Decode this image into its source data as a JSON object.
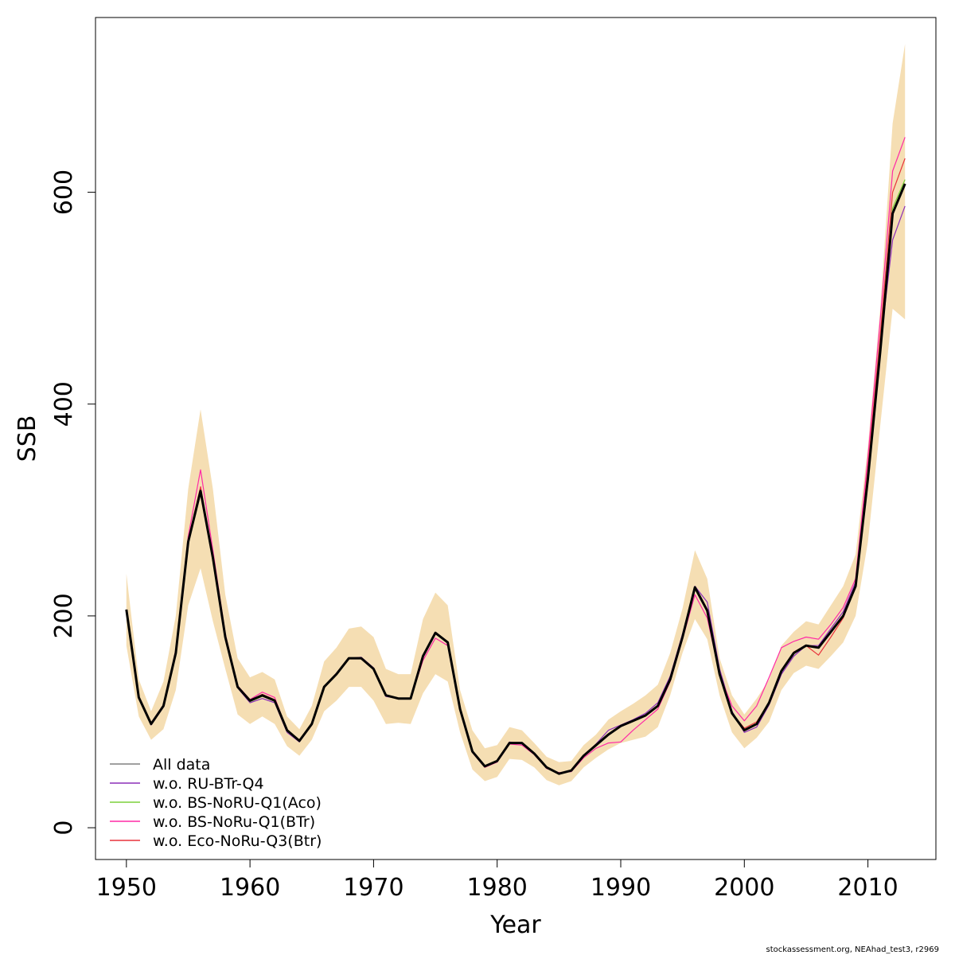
{
  "chart_data": {
    "type": "line",
    "xlabel": "Year",
    "ylabel": "SSB",
    "xlim": [
      1947.5,
      2015.5
    ],
    "ylim": [
      -30,
      765
    ],
    "x_ticks": [
      1950,
      1960,
      1970,
      1980,
      1990,
      2000,
      2010
    ],
    "y_ticks": [
      0,
      200,
      400,
      600
    ],
    "x_tick_labels": [
      "1950",
      "1960",
      "1970",
      "1980",
      "1990",
      "2000",
      "2010"
    ],
    "y_tick_labels": [
      "0",
      "200",
      "400",
      "600"
    ],
    "legend_position": "bottom-left",
    "footnote": "stockassessment.org, NEAhad_test3, r2969",
    "colors": {
      "band": "#f5deb3",
      "all_data": "#000000",
      "ru_btr_q4": "#8b2fb8",
      "bs_noru_q1_aco": "#7cd13a",
      "bs_noru_q1_btr": "#ff2aa6",
      "eco_noru_q3_btr": "#e8323c",
      "legend_all_data": "#808080"
    },
    "x": [
      1950,
      1951,
      1952,
      1953,
      1954,
      1955,
      1956,
      1957,
      1958,
      1959,
      1960,
      1961,
      1962,
      1963,
      1964,
      1965,
      1966,
      1967,
      1968,
      1969,
      1970,
      1971,
      1972,
      1973,
      1974,
      1975,
      1976,
      1977,
      1978,
      1979,
      1980,
      1981,
      1982,
      1983,
      1984,
      1985,
      1986,
      1987,
      1988,
      1989,
      1990,
      1991,
      1992,
      1993,
      1994,
      1995,
      1996,
      1997,
      1998,
      1999,
      2000,
      2001,
      2002,
      2003,
      2004,
      2005,
      2006,
      2007,
      2008,
      2009,
      2010,
      2011,
      2012,
      2013
    ],
    "band_upper": [
      240,
      140,
      110,
      138,
      200,
      320,
      395,
      320,
      220,
      160,
      142,
      147,
      140,
      105,
      93,
      115,
      157,
      170,
      188,
      190,
      180,
      150,
      145,
      145,
      197,
      222,
      210,
      130,
      92,
      75,
      78,
      95,
      92,
      80,
      67,
      62,
      63,
      78,
      88,
      102,
      110,
      117,
      125,
      135,
      165,
      207,
      262,
      235,
      160,
      125,
      107,
      122,
      140,
      172,
      185,
      195,
      192,
      210,
      228,
      258,
      360,
      490,
      665,
      740
    ],
    "band_lower": [
      172,
      105,
      83,
      93,
      130,
      210,
      245,
      195,
      150,
      107,
      98,
      105,
      98,
      77,
      68,
      83,
      110,
      120,
      133,
      133,
      120,
      98,
      99,
      98,
      127,
      145,
      138,
      90,
      55,
      44,
      48,
      65,
      64,
      57,
      45,
      40,
      44,
      57,
      66,
      74,
      80,
      83,
      86,
      95,
      125,
      165,
      197,
      178,
      125,
      90,
      75,
      85,
      100,
      130,
      146,
      153,
      150,
      162,
      175,
      200,
      270,
      380,
      490,
      480
    ],
    "series": [
      {
        "name": "All data",
        "color_key": "all_data",
        "values": [
          206,
          123,
          98,
          115,
          165,
          270,
          318,
          255,
          180,
          133,
          120,
          125,
          120,
          92,
          82,
          98,
          133,
          145,
          160,
          160,
          150,
          125,
          122,
          122,
          162,
          184,
          175,
          112,
          72,
          58,
          63,
          80,
          80,
          70,
          57,
          51,
          54,
          68,
          78,
          88,
          96,
          101,
          106,
          115,
          140,
          180,
          227,
          205,
          145,
          108,
          92,
          98,
          118,
          148,
          165,
          172,
          170,
          185,
          200,
          228,
          330,
          450,
          580,
          608
        ]
      },
      {
        "name": "w.o. RU-BTr-Q4",
        "color_key": "ru_btr_q4",
        "values": [
          205,
          122,
          97,
          114,
          164,
          268,
          316,
          252,
          178,
          132,
          118,
          122,
          118,
          90,
          81,
          97,
          132,
          145,
          160,
          161,
          151,
          124,
          122,
          122,
          162,
          183,
          175,
          112,
          72,
          58,
          62,
          81,
          79,
          70,
          56,
          52,
          53,
          68,
          79,
          92,
          97,
          102,
          108,
          118,
          143,
          183,
          228,
          213,
          150,
          110,
          90,
          95,
          116,
          145,
          162,
          172,
          172,
          188,
          204,
          232,
          338,
          455,
          555,
          587
        ]
      },
      {
        "name": "w.o. BS-NoRU-Q1(Aco)",
        "color_key": "bs_noru_q1_aco",
        "values": [
          206,
          123,
          98,
          115,
          165,
          270,
          318,
          254,
          180,
          133,
          119,
          124,
          120,
          91,
          82,
          98,
          133,
          145,
          160,
          160,
          150,
          125,
          122,
          122,
          162,
          184,
          175,
          112,
          72,
          58,
          63,
          80,
          80,
          70,
          57,
          51,
          54,
          68,
          78,
          88,
          96,
          101,
          106,
          115,
          140,
          180,
          227,
          205,
          145,
          108,
          92,
          98,
          118,
          148,
          165,
          172,
          170,
          185,
          200,
          228,
          332,
          452,
          585,
          612
        ]
      },
      {
        "name": "w.o. BS-NoRu-Q1(BTr)",
        "color_key": "bs_noru_q1_btr",
        "values": [
          206,
          124,
          99,
          116,
          168,
          275,
          338,
          262,
          183,
          134,
          121,
          128,
          123,
          92,
          82,
          98,
          133,
          146,
          160,
          160,
          150,
          125,
          122,
          122,
          158,
          179,
          172,
          110,
          71,
          57,
          62,
          79,
          78,
          69,
          56,
          52,
          53,
          66,
          75,
          80,
          81,
          92,
          102,
          112,
          138,
          178,
          220,
          198,
          145,
          115,
          101,
          115,
          142,
          170,
          176,
          180,
          178,
          192,
          208,
          235,
          350,
          480,
          620,
          652
        ]
      },
      {
        "name": "w.o. Eco-NoRu-Q3(Btr)",
        "color_key": "eco_noru_q3_btr",
        "values": [
          206,
          123,
          98,
          115,
          166,
          272,
          322,
          256,
          181,
          133,
          120,
          126,
          121,
          92,
          82,
          98,
          133,
          145,
          160,
          160,
          150,
          125,
          122,
          122,
          162,
          184,
          175,
          112,
          72,
          58,
          63,
          80,
          80,
          70,
          57,
          51,
          54,
          68,
          78,
          88,
          96,
          101,
          106,
          115,
          140,
          180,
          227,
          205,
          145,
          108,
          94,
          100,
          118,
          148,
          166,
          172,
          163,
          180,
          198,
          228,
          340,
          465,
          600,
          632
        ]
      }
    ]
  }
}
